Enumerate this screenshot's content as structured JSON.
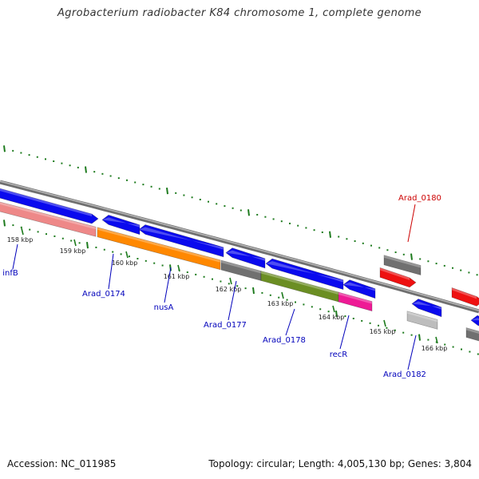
{
  "title": "Agrobacterium radiobacter K84 chromosome 1, complete genome",
  "footer": {
    "accession": "Accession: NC_011985",
    "summary": "Topology: circular; Length: 4,005,130 bp; Genes: 3,804"
  },
  "colors": {
    "backbone": "#808080",
    "tick": "#1e7b1e",
    "label_blue": "#0000bb",
    "label_red": "#cc0000",
    "cds_blue": "#0a0aee",
    "rrna_orange": "#ff8800",
    "gray": "#707070",
    "light_gray": "#bdbdbd",
    "olive": "#6b8e23",
    "magenta": "#ee1a95",
    "red": "#ee1111",
    "pink": "#ee8888"
  },
  "ticks": [
    {
      "label": "158 kbp"
    },
    {
      "label": "159 kbp"
    },
    {
      "label": "160 kbp"
    },
    {
      "label": "161 kbp"
    },
    {
      "label": "162 kbp"
    },
    {
      "label": "163 kbp"
    },
    {
      "label": "164 kbp"
    },
    {
      "label": "165 kbp"
    },
    {
      "label": "166 kbp"
    }
  ],
  "gene_labels": [
    {
      "text": "infB",
      "color": "blue"
    },
    {
      "text": "Arad_0174",
      "color": "blue"
    },
    {
      "text": "nusA",
      "color": "blue"
    },
    {
      "text": "Arad_0177",
      "color": "blue"
    },
    {
      "text": "Arad_0178",
      "color": "blue"
    },
    {
      "text": "recR",
      "color": "blue"
    },
    {
      "text": "Arad_0182",
      "color": "blue"
    },
    {
      "text": "Arad_0180",
      "color": "red"
    }
  ]
}
